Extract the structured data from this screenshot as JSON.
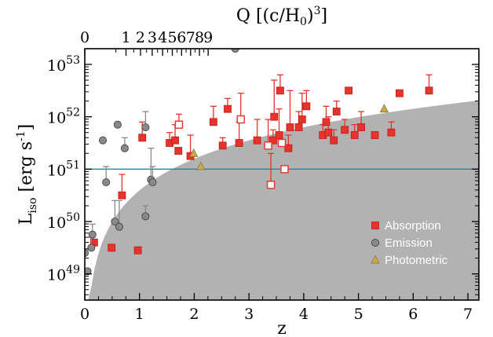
{
  "chart_data": {
    "type": "scatter",
    "title": "",
    "xlabel": "z",
    "x2label": "Q [(c/H0)^3]",
    "ylabel": "L_iso [erg s^-1]",
    "xlim": [
      0,
      7.2
    ],
    "ylim_log10": [
      48.5,
      53.3
    ],
    "yscale": "log",
    "x_ticks": [
      "0",
      "1",
      "2",
      "3",
      "4",
      "5",
      "6",
      "7"
    ],
    "x2_ticks": [
      "0",
      "1",
      "2",
      "3",
      "4",
      "5",
      "6",
      "7",
      "8",
      "9"
    ],
    "y_ticks": [
      "10^49",
      "10^50",
      "10^51",
      "10^52",
      "10^53"
    ],
    "hline_log10": 51.0,
    "shaded_region": "detection-limit",
    "colors": {
      "absorption": "#e8322c",
      "emission": "#8a8a8a",
      "photometric": "#c8a850",
      "shade": "#b2b2b2",
      "hline": "#2e7fa0"
    },
    "legend": {
      "position": "bottom-right",
      "entries": [
        "Absorption",
        "Emission",
        "Photometric"
      ]
    },
    "series": [
      {
        "name": "Absorption",
        "marker": "square",
        "points": [
          [
            0.17,
            49.6,
            0.0
          ],
          [
            0.49,
            49.5,
            0.0
          ],
          [
            0.68,
            50.5,
            0.4
          ],
          [
            0.97,
            49.45,
            0.0
          ],
          [
            1.05,
            51.6,
            0.3
          ],
          [
            1.55,
            51.5,
            0.2
          ],
          [
            1.65,
            51.55,
            0.3
          ],
          [
            1.71,
            51.35,
            0.0
          ],
          [
            1.93,
            51.25,
            0.4
          ],
          [
            2.35,
            51.9,
            0.3
          ],
          [
            2.52,
            51.45,
            0.15
          ],
          [
            2.61,
            52.15,
            0.2
          ],
          [
            2.82,
            51.5,
            0.4
          ],
          [
            3.15,
            51.55,
            0.4
          ],
          [
            3.44,
            51.55,
            0.2
          ],
          [
            3.46,
            52.0,
            0.7
          ],
          [
            3.55,
            51.65,
            0.5
          ],
          [
            3.57,
            52.5,
            0.3
          ],
          [
            3.72,
            51.4,
            0.25
          ],
          [
            3.75,
            51.8,
            0.7
          ],
          [
            3.91,
            51.8,
            0.3
          ],
          [
            3.97,
            51.95,
            0.5
          ],
          [
            4.05,
            52.2,
            0.3
          ],
          [
            4.35,
            51.65,
            0.2
          ],
          [
            4.41,
            51.9,
            0.3
          ],
          [
            4.45,
            51.7,
            0.3
          ],
          [
            4.55,
            51.55,
            0.2
          ],
          [
            4.6,
            52.1,
            0.2
          ],
          [
            4.75,
            51.75,
            0.2
          ],
          [
            4.82,
            52.5,
            0.0
          ],
          [
            4.93,
            51.65,
            0.2
          ],
          [
            5.05,
            51.8,
            0.3
          ],
          [
            5.3,
            51.65,
            0.0
          ],
          [
            5.6,
            51.7,
            0.2
          ],
          [
            5.75,
            52.45,
            0.0
          ],
          [
            6.29,
            52.5,
            0.3
          ]
        ]
      },
      {
        "name": "Absorption (open)",
        "marker": "open-square",
        "points": [
          [
            1.72,
            51.85,
            0.2
          ],
          [
            2.85,
            51.95,
            0.5
          ],
          [
            3.4,
            50.7,
            0.6
          ],
          [
            3.35,
            51.45,
            0.5
          ],
          [
            3.65,
            51.0,
            0.0
          ],
          [
            3.6,
            51.5,
            0.0
          ]
        ]
      },
      {
        "name": "Emission",
        "marker": "circle",
        "points": [
          [
            0.0,
            49.4,
            0.0
          ],
          [
            0.05,
            49.05,
            0.0
          ],
          [
            0.12,
            49.5,
            0.2
          ],
          [
            0.14,
            49.75,
            0.2
          ],
          [
            0.33,
            51.55,
            0.0
          ],
          [
            0.39,
            50.75,
            0.3
          ],
          [
            0.55,
            50.0,
            0.4
          ],
          [
            0.6,
            51.85,
            0.0
          ],
          [
            0.63,
            49.9,
            0.5
          ],
          [
            0.73,
            51.4,
            0.2
          ],
          [
            1.11,
            50.1,
            0.2
          ],
          [
            1.11,
            51.8,
            0.3
          ],
          [
            1.21,
            50.8,
            0.6
          ],
          [
            1.24,
            50.75,
            0.3
          ],
          [
            2.75,
            53.3,
            0.0
          ]
        ]
      },
      {
        "name": "Photometric",
        "marker": "triangle",
        "points": [
          [
            1.99,
            51.3,
            0.0
          ],
          [
            2.12,
            51.05,
            0.0
          ],
          [
            5.47,
            52.15,
            0.0
          ]
        ]
      }
    ]
  }
}
